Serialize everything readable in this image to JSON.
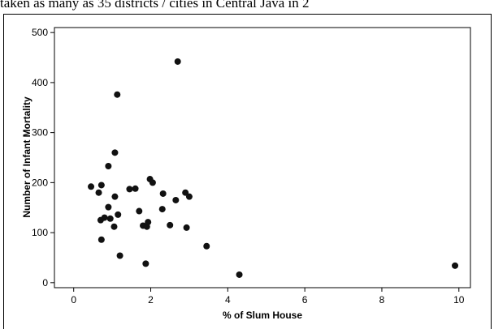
{
  "caption_fragment": "taken as many as 35 districts / cities in Central Java in 2",
  "chart_data": {
    "type": "scatter",
    "title": "",
    "xlabel": "% of Slum House",
    "ylabel": "Number of Infant Mortality",
    "xlim": [
      -0.5,
      10.3
    ],
    "ylim": [
      -10,
      510
    ],
    "xticks": [
      0,
      2,
      4,
      6,
      8,
      10
    ],
    "yticks": [
      0,
      100,
      200,
      300,
      400,
      500
    ],
    "grid": false,
    "points": [
      {
        "x": 0.45,
        "y": 192
      },
      {
        "x": 0.65,
        "y": 180
      },
      {
        "x": 0.7,
        "y": 125
      },
      {
        "x": 0.72,
        "y": 195
      },
      {
        "x": 0.72,
        "y": 86
      },
      {
        "x": 0.8,
        "y": 130
      },
      {
        "x": 0.9,
        "y": 233
      },
      {
        "x": 0.9,
        "y": 151
      },
      {
        "x": 0.95,
        "y": 128
      },
      {
        "x": 1.05,
        "y": 112
      },
      {
        "x": 1.07,
        "y": 172
      },
      {
        "x": 1.07,
        "y": 260
      },
      {
        "x": 1.13,
        "y": 376
      },
      {
        "x": 1.15,
        "y": 136
      },
      {
        "x": 1.2,
        "y": 54
      },
      {
        "x": 1.45,
        "y": 187
      },
      {
        "x": 1.6,
        "y": 188
      },
      {
        "x": 1.7,
        "y": 143
      },
      {
        "x": 1.8,
        "y": 114
      },
      {
        "x": 1.87,
        "y": 38
      },
      {
        "x": 1.9,
        "y": 112
      },
      {
        "x": 1.93,
        "y": 121
      },
      {
        "x": 1.98,
        "y": 207
      },
      {
        "x": 2.05,
        "y": 200
      },
      {
        "x": 2.3,
        "y": 147
      },
      {
        "x": 2.32,
        "y": 178
      },
      {
        "x": 2.5,
        "y": 115
      },
      {
        "x": 2.65,
        "y": 165
      },
      {
        "x": 2.7,
        "y": 442
      },
      {
        "x": 2.9,
        "y": 180
      },
      {
        "x": 2.93,
        "y": 110
      },
      {
        "x": 3.0,
        "y": 172
      },
      {
        "x": 3.45,
        "y": 73
      },
      {
        "x": 4.3,
        "y": 16
      },
      {
        "x": 9.9,
        "y": 34
      }
    ]
  }
}
